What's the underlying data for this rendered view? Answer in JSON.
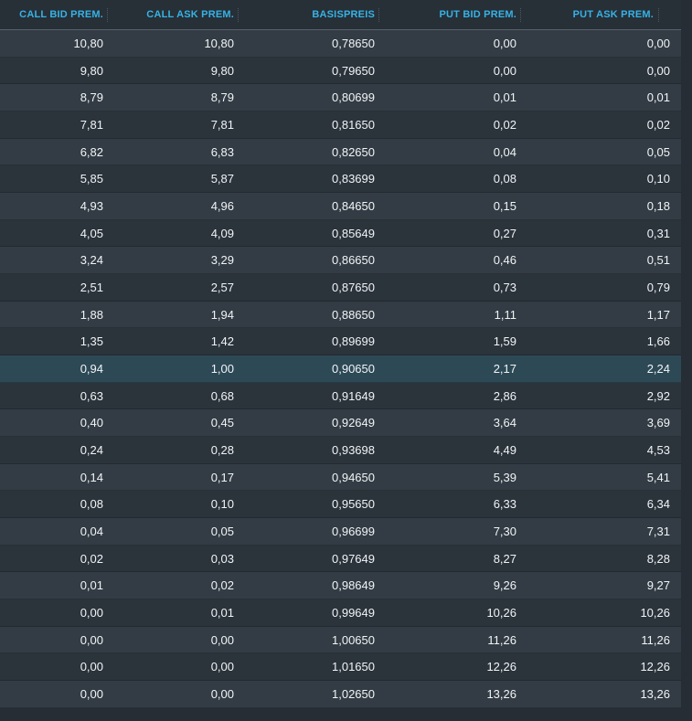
{
  "app": {
    "view_name": "Optionsschein-Matrix"
  },
  "colors": {
    "accent_header_text": "#36b3e6",
    "header_bg": "#272f37",
    "header_border": "#56626c",
    "header_separator": "#4c5a64",
    "row_odd_bg": "#333c44",
    "row_even_bg": "#2b333b",
    "row_highlight_bg": "#2d4956",
    "cell_text": "#f0f4f6",
    "page_bg": "#262d34"
  },
  "table": {
    "columns": [
      {
        "key": "call_bid_prem",
        "label": "CALL BID PREM."
      },
      {
        "key": "call_ask_prem",
        "label": "CALL ASK PREM."
      },
      {
        "key": "basispreis",
        "label": "BASISPREIS"
      },
      {
        "key": "put_bid_prem",
        "label": "PUT BID PREM."
      },
      {
        "key": "put_ask_prem",
        "label": "PUT ASK PREM."
      }
    ],
    "highlighted_row_index": 12,
    "rows": [
      [
        "10,80",
        "10,80",
        "0,78650",
        "0,00",
        "0,00"
      ],
      [
        "9,80",
        "9,80",
        "0,79650",
        "0,00",
        "0,00"
      ],
      [
        "8,79",
        "8,79",
        "0,80699",
        "0,01",
        "0,01"
      ],
      [
        "7,81",
        "7,81",
        "0,81650",
        "0,02",
        "0,02"
      ],
      [
        "6,82",
        "6,83",
        "0,82650",
        "0,04",
        "0,05"
      ],
      [
        "5,85",
        "5,87",
        "0,83699",
        "0,08",
        "0,10"
      ],
      [
        "4,93",
        "4,96",
        "0,84650",
        "0,15",
        "0,18"
      ],
      [
        "4,05",
        "4,09",
        "0,85649",
        "0,27",
        "0,31"
      ],
      [
        "3,24",
        "3,29",
        "0,86650",
        "0,46",
        "0,51"
      ],
      [
        "2,51",
        "2,57",
        "0,87650",
        "0,73",
        "0,79"
      ],
      [
        "1,88",
        "1,94",
        "0,88650",
        "1,11",
        "1,17"
      ],
      [
        "1,35",
        "1,42",
        "0,89699",
        "1,59",
        "1,66"
      ],
      [
        "0,94",
        "1,00",
        "0,90650",
        "2,17",
        "2,24"
      ],
      [
        "0,63",
        "0,68",
        "0,91649",
        "2,86",
        "2,92"
      ],
      [
        "0,40",
        "0,45",
        "0,92649",
        "3,64",
        "3,69"
      ],
      [
        "0,24",
        "0,28",
        "0,93698",
        "4,49",
        "4,53"
      ],
      [
        "0,14",
        "0,17",
        "0,94650",
        "5,39",
        "5,41"
      ],
      [
        "0,08",
        "0,10",
        "0,95650",
        "6,33",
        "6,34"
      ],
      [
        "0,04",
        "0,05",
        "0,96699",
        "7,30",
        "7,31"
      ],
      [
        "0,02",
        "0,03",
        "0,97649",
        "8,27",
        "8,28"
      ],
      [
        "0,01",
        "0,02",
        "0,98649",
        "9,26",
        "9,27"
      ],
      [
        "0,00",
        "0,01",
        "0,99649",
        "10,26",
        "10,26"
      ],
      [
        "0,00",
        "0,00",
        "1,00650",
        "11,26",
        "11,26"
      ],
      [
        "0,00",
        "0,00",
        "1,01650",
        "12,26",
        "12,26"
      ],
      [
        "0,00",
        "0,00",
        "1,02650",
        "13,26",
        "13,26"
      ]
    ]
  }
}
